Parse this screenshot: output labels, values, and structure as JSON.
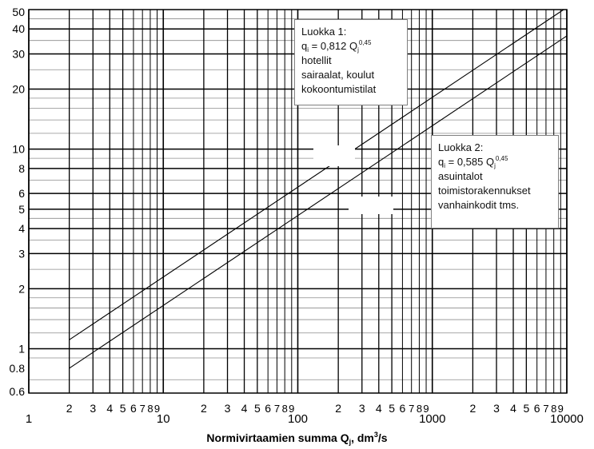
{
  "chart_data": {
    "type": "line",
    "x_scale": "log",
    "y_scale": "log",
    "xlim": [
      1,
      10000
    ],
    "ylim": [
      0.6,
      50
    ],
    "grid": true,
    "x_major_ticks": [
      {
        "value": 1,
        "label": "1"
      },
      {
        "value": 10,
        "label": "10"
      },
      {
        "value": 100,
        "label": "100"
      },
      {
        "value": 1000,
        "label": "1000"
      },
      {
        "value": 10000,
        "label": "10000"
      }
    ],
    "x_minor_ticks": [
      {
        "value": 2,
        "label": "2"
      },
      {
        "value": 3,
        "label": "3"
      },
      {
        "value": 4,
        "label": "4"
      },
      {
        "value": 5,
        "label": "5"
      },
      {
        "value": 6,
        "label": "6"
      },
      {
        "value": 7,
        "label": "7"
      },
      {
        "value": 8,
        "label": "8"
      },
      {
        "value": 9,
        "label": "9"
      },
      {
        "value": 20,
        "label": "2"
      },
      {
        "value": 30,
        "label": "3"
      },
      {
        "value": 40,
        "label": "4"
      },
      {
        "value": 50,
        "label": "5"
      },
      {
        "value": 60,
        "label": "6"
      },
      {
        "value": 70,
        "label": "7"
      },
      {
        "value": 80,
        "label": "8"
      },
      {
        "value": 90,
        "label": "9"
      },
      {
        "value": 200,
        "label": "2"
      },
      {
        "value": 300,
        "label": "3"
      },
      {
        "value": 400,
        "label": "4"
      },
      {
        "value": 500,
        "label": "5"
      },
      {
        "value": 600,
        "label": "6"
      },
      {
        "value": 700,
        "label": "7"
      },
      {
        "value": 800,
        "label": "8"
      },
      {
        "value": 900,
        "label": "9"
      },
      {
        "value": 2000,
        "label": "2"
      },
      {
        "value": 3000,
        "label": "3"
      },
      {
        "value": 4000,
        "label": "4"
      },
      {
        "value": 5000,
        "label": "5"
      },
      {
        "value": 6000,
        "label": "6"
      },
      {
        "value": 7000,
        "label": "7"
      },
      {
        "value": 8000,
        "label": "8"
      },
      {
        "value": 9000,
        "label": "9"
      }
    ],
    "y_ticks": [
      {
        "value": 0.6,
        "label": "0.6"
      },
      {
        "value": 0.8,
        "label": "0.8"
      },
      {
        "value": 1,
        "label": "1"
      },
      {
        "value": 2,
        "label": "2"
      },
      {
        "value": 3,
        "label": "3"
      },
      {
        "value": 4,
        "label": "4"
      },
      {
        "value": 5,
        "label": "5"
      },
      {
        "value": 6,
        "label": "6"
      },
      {
        "value": 8,
        "label": "8"
      },
      {
        "value": 10,
        "label": "10"
      },
      {
        "value": 20,
        "label": "20"
      },
      {
        "value": 30,
        "label": "30"
      },
      {
        "value": 40,
        "label": "40"
      },
      {
        "value": 50,
        "label": "50"
      }
    ],
    "y_heavy_gridlines": [
      1,
      2,
      3,
      4,
      5,
      6,
      8,
      10,
      20,
      30,
      40
    ],
    "y_light_gridlines": [
      0.7,
      0.9,
      1.2,
      1.4,
      1.6,
      1.8,
      2.5,
      3.5,
      4.5,
      7,
      9,
      12,
      14,
      16,
      18,
      25,
      35,
      45
    ],
    "xlabel": {
      "main": "Normivirtaamien summa Q",
      "sub": "j",
      "tail": ", dm",
      "sup": "3",
      "end": "/s"
    },
    "series": [
      {
        "coefficient": 0.812,
        "exponent": 0.45,
        "x_range": [
          2,
          10000
        ],
        "color": "#000000"
      },
      {
        "coefficient": 0.585,
        "exponent": 0.45,
        "x_range": [
          2,
          10000
        ],
        "color": "#000000"
      }
    ],
    "annotations": [
      {
        "title": "Luokka 1:",
        "formula": {
          "q": "q",
          "q_sub": "i",
          "eq": " = 0,812 Q",
          "Q_sub": "j",
          "exp": "0,45"
        },
        "lines": [
          "hotellit",
          "sairaalat, koulut",
          "kokoontumistilat"
        ]
      },
      {
        "title": "Luokka 2:",
        "formula": {
          "q": "q",
          "q_sub": "i",
          "eq": " = 0,585 Q",
          "Q_sub": "j",
          "exp": "0,45"
        },
        "lines": [
          "asuintalot",
          "toimistorakennukset",
          "vanhainkodit tms."
        ]
      }
    ]
  },
  "colors": {
    "grid_heavy": "#000000",
    "grid_light": "#8c8c8c",
    "line": "#000000",
    "text": "#000000"
  }
}
